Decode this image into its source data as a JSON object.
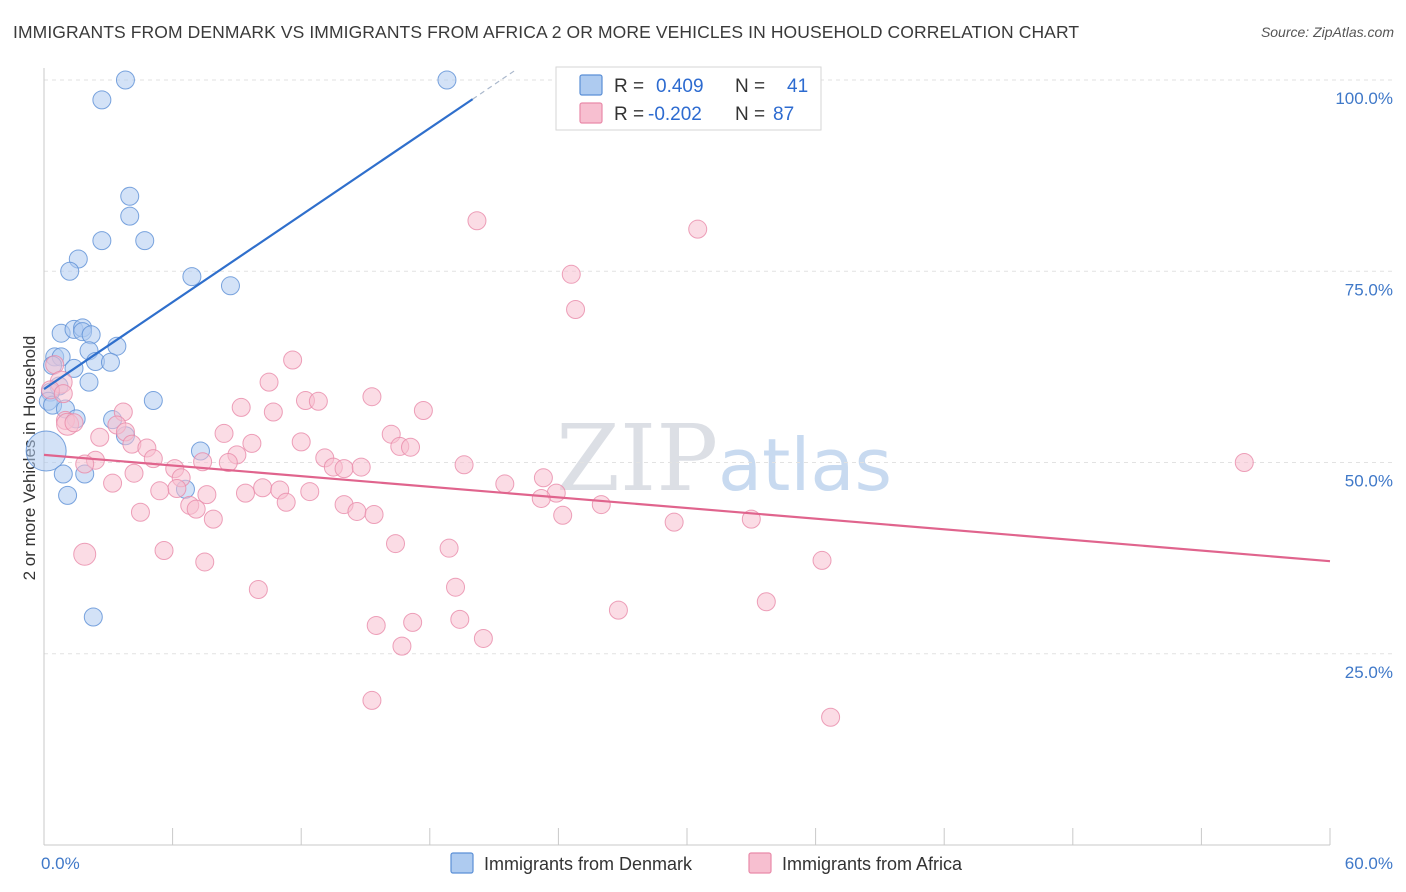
{
  "title": "IMMIGRANTS FROM DENMARK VS IMMIGRANTS FROM AFRICA 2 OR MORE VEHICLES IN HOUSEHOLD CORRELATION CHART",
  "source": "Source: ZipAtlas.com",
  "watermark": {
    "left": "ZIP",
    "right": "atlas"
  },
  "colors": {
    "denmark_fill": "#aecbf0",
    "denmark_stroke": "#5b8fd6",
    "denmark_line": "#2f6fcc",
    "africa_fill": "#f7bfd0",
    "africa_stroke": "#e98aa9",
    "africa_line": "#e0648d",
    "axis_label": "#3f78c8"
  },
  "legend": {
    "rows": [
      {
        "r_label": "R =",
        "r_value": "0.409",
        "n_label": "N =",
        "n_value": "41"
      },
      {
        "r_label": "R =",
        "r_value": "-0.202",
        "n_label": "N =",
        "n_value": "87"
      }
    ]
  },
  "chart_data": {
    "type": "scatter",
    "title": "IMMIGRANTS FROM DENMARK VS IMMIGRANTS FROM AFRICA 2 OR MORE VEHICLES IN HOUSEHOLD CORRELATION CHART",
    "ylabel": "2 or more Vehicles in Household",
    "xlabel": "",
    "xlim": [
      0,
      60
    ],
    "ylim": [
      0,
      100
    ],
    "x_tick_labels": [
      "0.0%",
      "60.0%"
    ],
    "y_ticks": [
      25,
      50,
      75,
      100
    ],
    "y_tick_labels": [
      "25.0%",
      "50.0%",
      "75.0%",
      "100.0%"
    ],
    "grid": true,
    "series": [
      {
        "name": "Immigrants from Denmark",
        "r": 0.409,
        "n": 41,
        "trend": {
          "x0": 0,
          "y0": 59.6,
          "x1": 20,
          "y1": 97.5,
          "dash_to_x": 22,
          "dash_to_y": 101.3
        },
        "points": [
          {
            "x": 3.8,
            "y": 100,
            "s": 9
          },
          {
            "x": 18.8,
            "y": 100,
            "s": 9
          },
          {
            "x": 2.7,
            "y": 97.4,
            "s": 9
          },
          {
            "x": 4.0,
            "y": 84.8,
            "s": 9
          },
          {
            "x": 4.0,
            "y": 82.2,
            "s": 9
          },
          {
            "x": 2.7,
            "y": 79.0,
            "s": 9
          },
          {
            "x": 4.7,
            "y": 79.0,
            "s": 9
          },
          {
            "x": 1.6,
            "y": 76.6,
            "s": 9
          },
          {
            "x": 1.2,
            "y": 75.0,
            "s": 9
          },
          {
            "x": 6.9,
            "y": 74.3,
            "s": 9
          },
          {
            "x": 8.7,
            "y": 73.1,
            "s": 9
          },
          {
            "x": 0.8,
            "y": 66.9,
            "s": 9
          },
          {
            "x": 1.4,
            "y": 67.4,
            "s": 9
          },
          {
            "x": 1.8,
            "y": 67.6,
            "s": 9
          },
          {
            "x": 1.8,
            "y": 67.1,
            "s": 9
          },
          {
            "x": 2.2,
            "y": 66.7,
            "s": 9
          },
          {
            "x": 3.4,
            "y": 65.2,
            "s": 9
          },
          {
            "x": 2.1,
            "y": 64.6,
            "s": 9
          },
          {
            "x": 0.5,
            "y": 63.8,
            "s": 9
          },
          {
            "x": 0.8,
            "y": 63.8,
            "s": 9
          },
          {
            "x": 2.4,
            "y": 63.2,
            "s": 9
          },
          {
            "x": 3.1,
            "y": 63.1,
            "s": 9
          },
          {
            "x": 1.4,
            "y": 62.3,
            "s": 9
          },
          {
            "x": 0.4,
            "y": 62.7,
            "s": 9
          },
          {
            "x": 2.1,
            "y": 60.5,
            "s": 9
          },
          {
            "x": 0.7,
            "y": 60.0,
            "s": 9
          },
          {
            "x": 0.3,
            "y": 59.2,
            "s": 9
          },
          {
            "x": 0.2,
            "y": 58.0,
            "s": 9
          },
          {
            "x": 5.1,
            "y": 58.1,
            "s": 9
          },
          {
            "x": 0.4,
            "y": 57.5,
            "s": 9
          },
          {
            "x": 1.0,
            "y": 57.0,
            "s": 9
          },
          {
            "x": 1.5,
            "y": 55.7,
            "s": 9
          },
          {
            "x": 3.2,
            "y": 55.6,
            "s": 9
          },
          {
            "x": 3.8,
            "y": 53.5,
            "s": 9
          },
          {
            "x": 7.3,
            "y": 51.5,
            "s": 9
          },
          {
            "x": 0.1,
            "y": 51.5,
            "s": 20
          },
          {
            "x": 0.9,
            "y": 48.5,
            "s": 9
          },
          {
            "x": 1.9,
            "y": 48.5,
            "s": 9
          },
          {
            "x": 6.6,
            "y": 46.5,
            "s": 9
          },
          {
            "x": 1.1,
            "y": 45.7,
            "s": 9
          },
          {
            "x": 2.3,
            "y": 29.8,
            "s": 9
          }
        ]
      },
      {
        "name": "Immigrants from Africa",
        "r": -0.202,
        "n": 87,
        "trend": {
          "x0": 0,
          "y0": 51.0,
          "x1": 60,
          "y1": 37.1
        },
        "points": [
          {
            "x": 20.2,
            "y": 81.6,
            "s": 9
          },
          {
            "x": 30.5,
            "y": 80.5,
            "s": 9
          },
          {
            "x": 24.6,
            "y": 74.6,
            "s": 9
          },
          {
            "x": 24.8,
            "y": 70.0,
            "s": 9
          },
          {
            "x": 11.6,
            "y": 63.4,
            "s": 9
          },
          {
            "x": 0.5,
            "y": 62.8,
            "s": 9
          },
          {
            "x": 10.5,
            "y": 60.5,
            "s": 9
          },
          {
            "x": 0.8,
            "y": 60.5,
            "s": 11
          },
          {
            "x": 0.3,
            "y": 59.5,
            "s": 9
          },
          {
            "x": 0.9,
            "y": 59.0,
            "s": 9
          },
          {
            "x": 15.3,
            "y": 58.6,
            "s": 9
          },
          {
            "x": 12.2,
            "y": 58.1,
            "s": 9
          },
          {
            "x": 12.8,
            "y": 58.0,
            "s": 9
          },
          {
            "x": 9.2,
            "y": 57.2,
            "s": 9
          },
          {
            "x": 17.7,
            "y": 56.8,
            "s": 9
          },
          {
            "x": 3.7,
            "y": 56.6,
            "s": 9
          },
          {
            "x": 10.7,
            "y": 56.6,
            "s": 9
          },
          {
            "x": 1.0,
            "y": 55.5,
            "s": 9
          },
          {
            "x": 1.1,
            "y": 55.0,
            "s": 11
          },
          {
            "x": 1.4,
            "y": 55.2,
            "s": 9
          },
          {
            "x": 3.4,
            "y": 54.9,
            "s": 9
          },
          {
            "x": 3.8,
            "y": 54.0,
            "s": 9
          },
          {
            "x": 8.4,
            "y": 53.8,
            "s": 9
          },
          {
            "x": 16.2,
            "y": 53.7,
            "s": 9
          },
          {
            "x": 2.6,
            "y": 53.3,
            "s": 9
          },
          {
            "x": 12.0,
            "y": 52.7,
            "s": 9
          },
          {
            "x": 9.7,
            "y": 52.5,
            "s": 9
          },
          {
            "x": 4.1,
            "y": 52.4,
            "s": 9
          },
          {
            "x": 16.6,
            "y": 52.1,
            "s": 9
          },
          {
            "x": 17.1,
            "y": 52.0,
            "s": 9
          },
          {
            "x": 4.8,
            "y": 51.9,
            "s": 9
          },
          {
            "x": 9.0,
            "y": 51.0,
            "s": 9
          },
          {
            "x": 5.1,
            "y": 50.5,
            "s": 9
          },
          {
            "x": 2.4,
            "y": 50.3,
            "s": 9
          },
          {
            "x": 13.1,
            "y": 50.6,
            "s": 9
          },
          {
            "x": 7.4,
            "y": 50.1,
            "s": 9
          },
          {
            "x": 8.6,
            "y": 50.0,
            "s": 9
          },
          {
            "x": 1.9,
            "y": 49.8,
            "s": 9
          },
          {
            "x": 19.6,
            "y": 49.7,
            "s": 9
          },
          {
            "x": 56.0,
            "y": 50.0,
            "s": 9
          },
          {
            "x": 6.1,
            "y": 49.2,
            "s": 9
          },
          {
            "x": 13.5,
            "y": 49.4,
            "s": 9
          },
          {
            "x": 14.0,
            "y": 49.2,
            "s": 9
          },
          {
            "x": 14.8,
            "y": 49.4,
            "s": 9
          },
          {
            "x": 6.4,
            "y": 48.0,
            "s": 9
          },
          {
            "x": 23.3,
            "y": 48.0,
            "s": 9
          },
          {
            "x": 3.2,
            "y": 47.3,
            "s": 9
          },
          {
            "x": 21.5,
            "y": 47.2,
            "s": 9
          },
          {
            "x": 6.2,
            "y": 46.6,
            "s": 9
          },
          {
            "x": 10.2,
            "y": 46.7,
            "s": 9
          },
          {
            "x": 5.4,
            "y": 46.3,
            "s": 9
          },
          {
            "x": 11.0,
            "y": 46.4,
            "s": 9
          },
          {
            "x": 12.4,
            "y": 46.2,
            "s": 9
          },
          {
            "x": 9.4,
            "y": 46.0,
            "s": 9
          },
          {
            "x": 23.9,
            "y": 46.0,
            "s": 9
          },
          {
            "x": 7.6,
            "y": 45.8,
            "s": 9
          },
          {
            "x": 23.2,
            "y": 45.3,
            "s": 9
          },
          {
            "x": 11.3,
            "y": 44.8,
            "s": 9
          },
          {
            "x": 14.0,
            "y": 44.5,
            "s": 9
          },
          {
            "x": 6.8,
            "y": 44.4,
            "s": 9
          },
          {
            "x": 26.0,
            "y": 44.5,
            "s": 9
          },
          {
            "x": 7.1,
            "y": 43.9,
            "s": 9
          },
          {
            "x": 14.6,
            "y": 43.6,
            "s": 9
          },
          {
            "x": 4.5,
            "y": 43.5,
            "s": 9
          },
          {
            "x": 15.4,
            "y": 43.2,
            "s": 9
          },
          {
            "x": 24.2,
            "y": 43.1,
            "s": 9
          },
          {
            "x": 7.9,
            "y": 42.6,
            "s": 9
          },
          {
            "x": 33.0,
            "y": 42.6,
            "s": 9
          },
          {
            "x": 29.4,
            "y": 42.2,
            "s": 9
          },
          {
            "x": 16.4,
            "y": 39.4,
            "s": 9
          },
          {
            "x": 18.9,
            "y": 38.8,
            "s": 9
          },
          {
            "x": 5.6,
            "y": 38.5,
            "s": 9
          },
          {
            "x": 1.9,
            "y": 38.0,
            "s": 11
          },
          {
            "x": 36.3,
            "y": 37.2,
            "s": 9
          },
          {
            "x": 7.5,
            "y": 37.0,
            "s": 9
          },
          {
            "x": 19.2,
            "y": 33.7,
            "s": 9
          },
          {
            "x": 10.0,
            "y": 33.4,
            "s": 9
          },
          {
            "x": 33.7,
            "y": 31.8,
            "s": 9
          },
          {
            "x": 26.8,
            "y": 30.7,
            "s": 9
          },
          {
            "x": 19.4,
            "y": 29.5,
            "s": 9
          },
          {
            "x": 17.2,
            "y": 29.1,
            "s": 9
          },
          {
            "x": 15.5,
            "y": 28.7,
            "s": 9
          },
          {
            "x": 20.5,
            "y": 27.0,
            "s": 9
          },
          {
            "x": 16.7,
            "y": 26.0,
            "s": 9
          },
          {
            "x": 15.3,
            "y": 18.9,
            "s": 9
          },
          {
            "x": 36.7,
            "y": 16.7,
            "s": 9
          },
          {
            "x": 4.2,
            "y": 48.6,
            "s": 9
          }
        ]
      }
    ]
  }
}
